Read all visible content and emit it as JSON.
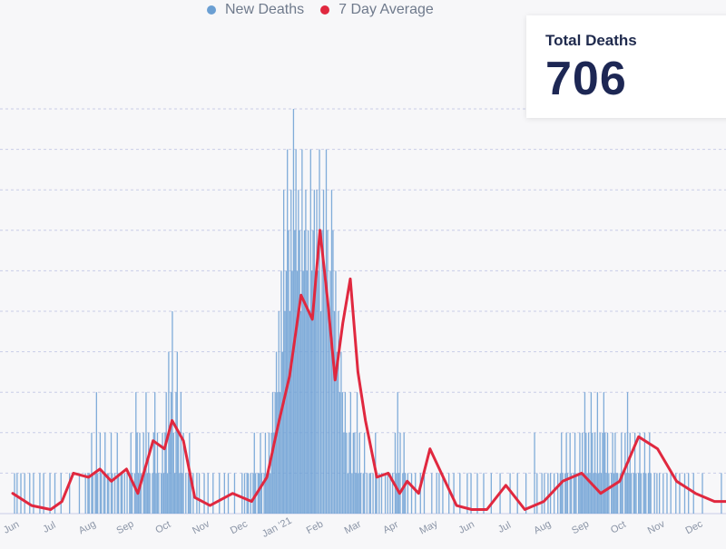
{
  "legend": {
    "new_deaths": {
      "label": "New Deaths",
      "color": "#6b9fd3"
    },
    "avg": {
      "label": "7 Day Average",
      "color": "#e0283f"
    }
  },
  "stat": {
    "label": "Total Deaths",
    "value": "706"
  },
  "chart_data": {
    "type": "bar",
    "title": "",
    "xlabel": "",
    "ylabel": "",
    "grid": true,
    "legend_position": "top-center",
    "ylim": [
      0,
      10
    ],
    "x_tick_labels": [
      "Jun",
      "Jul",
      "Aug",
      "Sep",
      "Oct",
      "Nov",
      "Dec",
      "Jan '21",
      "Feb",
      "Mar",
      "Apr",
      "May",
      "Jun",
      "Jul",
      "Aug",
      "Sep",
      "Oct",
      "Nov",
      "Dec"
    ],
    "series": [
      {
        "name": "New Deaths",
        "type": "bar",
        "color": "#6b9fd3",
        "monthly_values": [
          [
            0,
            1,
            0,
            1,
            0,
            0,
            1,
            0,
            0,
            1,
            0,
            0,
            0,
            1,
            0,
            0,
            1,
            0,
            0,
            0,
            0,
            1,
            0,
            0,
            1,
            0,
            0,
            0,
            0,
            1
          ],
          [
            0,
            0,
            0,
            1,
            0,
            0,
            0,
            0,
            1,
            0,
            0,
            0,
            0,
            0,
            0,
            1,
            0,
            0,
            0,
            0,
            0,
            0,
            0,
            1,
            0,
            0,
            0,
            0,
            1,
            0,
            1
          ],
          [
            1,
            0,
            2,
            1,
            0,
            1,
            3,
            1,
            0,
            2,
            1,
            0,
            1,
            2,
            0,
            1,
            1,
            0,
            2,
            1,
            0,
            1,
            0,
            2,
            1,
            0,
            1,
            1,
            0,
            1,
            0
          ],
          [
            1,
            0,
            1,
            2,
            1,
            0,
            1,
            3,
            2,
            1,
            2,
            1,
            0,
            2,
            1,
            3,
            1,
            2,
            1,
            0,
            1,
            2,
            3,
            1,
            2,
            1,
            0,
            1,
            2,
            1
          ],
          [
            2,
            3,
            1,
            4,
            2,
            3,
            5,
            2,
            1,
            3,
            4,
            2,
            1,
            3,
            1,
            2,
            0,
            1,
            0,
            1,
            2,
            1,
            0,
            1,
            0,
            0,
            1,
            0,
            1,
            0,
            0
          ],
          [
            0,
            1,
            0,
            0,
            1,
            0,
            0,
            0,
            1,
            0,
            0,
            0,
            0,
            1,
            0,
            0,
            0,
            1,
            0,
            0,
            1,
            0,
            0,
            0,
            0,
            1,
            0,
            0,
            0,
            0
          ],
          [
            0,
            1,
            0,
            1,
            0,
            1,
            1,
            0,
            1,
            0,
            1,
            2,
            1,
            0,
            1,
            1,
            2,
            1,
            0,
            1,
            2,
            1,
            1,
            2,
            1,
            2,
            3,
            2,
            3,
            4,
            3
          ],
          [
            5,
            3,
            6,
            4,
            8,
            5,
            6,
            9,
            7,
            5,
            8,
            6,
            10,
            7,
            9,
            6,
            8,
            7,
            5,
            9,
            6,
            7,
            8,
            6,
            7,
            5,
            9,
            6,
            7,
            8,
            6
          ],
          [
            8,
            6,
            9,
            5,
            7,
            8,
            6,
            9,
            7,
            5,
            6,
            8,
            7,
            5,
            6,
            4,
            5,
            3,
            4,
            3,
            2,
            3,
            2,
            1,
            2,
            3,
            1,
            2
          ],
          [
            2,
            1,
            3,
            1,
            2,
            1,
            0,
            1,
            2,
            0,
            1,
            0,
            1,
            1,
            0,
            1,
            0,
            2,
            1,
            0,
            1,
            0,
            1,
            0,
            0,
            1,
            0,
            1,
            0,
            1,
            0
          ],
          [
            1,
            0,
            2,
            1,
            3,
            1,
            2,
            0,
            1,
            2,
            1,
            0,
            1,
            0,
            0,
            1,
            0,
            0,
            1,
            0,
            0,
            0,
            1,
            0,
            0,
            1,
            0,
            0,
            0,
            0
          ],
          [
            0,
            1,
            0,
            0,
            0,
            1,
            0,
            1,
            0,
            0,
            1,
            0,
            0,
            0,
            0,
            1,
            0,
            0,
            0,
            1,
            0,
            0,
            0,
            0,
            1,
            0,
            0,
            0,
            0,
            0,
            1
          ],
          [
            0,
            0,
            1,
            0,
            0,
            0,
            0,
            1,
            0,
            0,
            0,
            0,
            1,
            0,
            0,
            0,
            0,
            0,
            1,
            0,
            0,
            0,
            0,
            0,
            0,
            1,
            0,
            0,
            0,
            0
          ],
          [
            0,
            0,
            0,
            1,
            0,
            0,
            0,
            0,
            0,
            1,
            0,
            0,
            0,
            0,
            0,
            0,
            1,
            0,
            0,
            0,
            0,
            0,
            0,
            2,
            0,
            1,
            0,
            0,
            0,
            1,
            0
          ],
          [
            1,
            0,
            0,
            1,
            0,
            1,
            0,
            0,
            1,
            0,
            0,
            1,
            0,
            1,
            2,
            1,
            0,
            1,
            2,
            1,
            0,
            2,
            1,
            0,
            1,
            2,
            1,
            0,
            1,
            2,
            1
          ],
          [
            2,
            1,
            3,
            2,
            1,
            2,
            1,
            3,
            2,
            1,
            2,
            1,
            3,
            1,
            2,
            1,
            2,
            3,
            2,
            1,
            2,
            1,
            0,
            1,
            2,
            1,
            2,
            1,
            1,
            0
          ],
          [
            1,
            2,
            1,
            0,
            2,
            1,
            3,
            1,
            2,
            1,
            0,
            1,
            2,
            1,
            0,
            1,
            2,
            1,
            0,
            1,
            2,
            1,
            0,
            1,
            2,
            1,
            0,
            0,
            1,
            0,
            1
          ],
          [
            0,
            1,
            0,
            0,
            1,
            0,
            0,
            1,
            0,
            0,
            1,
            0,
            0,
            0,
            1,
            0,
            0,
            1,
            0,
            0,
            0,
            1,
            0,
            0,
            1,
            0,
            0,
            0,
            1,
            0
          ],
          [
            0,
            1,
            0,
            0,
            1,
            0
          ]
        ]
      },
      {
        "name": "7 Day Average",
        "type": "line",
        "color": "#e0283f",
        "points": [
          [
            0.0,
            0.5
          ],
          [
            0.5,
            0.2
          ],
          [
            1.0,
            0.1
          ],
          [
            1.3,
            0.3
          ],
          [
            1.6,
            1.0
          ],
          [
            2.0,
            0.9
          ],
          [
            2.3,
            1.1
          ],
          [
            2.6,
            0.8
          ],
          [
            3.0,
            1.1
          ],
          [
            3.3,
            0.5
          ],
          [
            3.7,
            1.8
          ],
          [
            4.0,
            1.6
          ],
          [
            4.2,
            2.3
          ],
          [
            4.5,
            1.8
          ],
          [
            4.8,
            0.4
          ],
          [
            5.2,
            0.2
          ],
          [
            5.8,
            0.5
          ],
          [
            6.3,
            0.3
          ],
          [
            6.7,
            0.9
          ],
          [
            7.0,
            2.2
          ],
          [
            7.3,
            3.4
          ],
          [
            7.6,
            5.4
          ],
          [
            7.9,
            4.8
          ],
          [
            8.1,
            7.0
          ],
          [
            8.3,
            5.3
          ],
          [
            8.5,
            3.3
          ],
          [
            8.7,
            4.7
          ],
          [
            8.9,
            5.8
          ],
          [
            9.1,
            3.5
          ],
          [
            9.3,
            2.3
          ],
          [
            9.6,
            0.9
          ],
          [
            9.9,
            1.0
          ],
          [
            10.2,
            0.5
          ],
          [
            10.4,
            0.8
          ],
          [
            10.7,
            0.5
          ],
          [
            11.0,
            1.6
          ],
          [
            11.3,
            1.0
          ],
          [
            11.7,
            0.2
          ],
          [
            12.1,
            0.1
          ],
          [
            12.5,
            0.1
          ],
          [
            13.0,
            0.7
          ],
          [
            13.5,
            0.1
          ],
          [
            14.0,
            0.3
          ],
          [
            14.5,
            0.8
          ],
          [
            15.0,
            1.0
          ],
          [
            15.5,
            0.5
          ],
          [
            16.0,
            0.8
          ],
          [
            16.5,
            1.9
          ],
          [
            17.0,
            1.6
          ],
          [
            17.5,
            0.8
          ],
          [
            18.0,
            0.5
          ],
          [
            18.5,
            0.3
          ],
          [
            19.0,
            0.3
          ],
          [
            19.2,
            0.1
          ]
        ]
      }
    ]
  }
}
